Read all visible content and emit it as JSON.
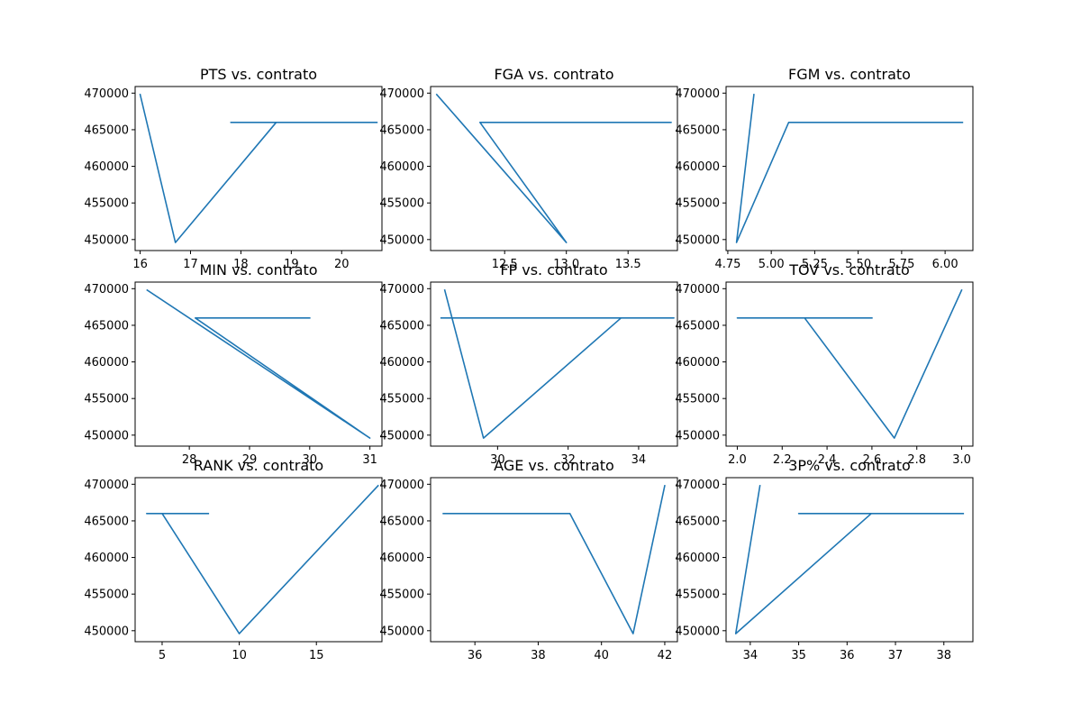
{
  "colors": {
    "series": "#1f77b4",
    "axis": "#000000",
    "background": "#ffffff"
  },
  "chart_data": [
    {
      "type": "line",
      "title": "PTS vs. contrato",
      "x": [
        16.0,
        16.7,
        18.7,
        20.7,
        17.8,
        20.7
      ],
      "y": [
        469800,
        449600,
        466000,
        466000,
        466000,
        466000
      ],
      "xlim": [
        15.9,
        20.8
      ],
      "ylim": [
        448500,
        470900
      ],
      "xticks": [
        16,
        17,
        18,
        19,
        20
      ],
      "xticklabels": [
        "16",
        "17",
        "18",
        "19",
        "20"
      ],
      "yticks": [
        450000,
        455000,
        460000,
        465000,
        470000
      ],
      "yticklabels": [
        "450000",
        "455000",
        "460000",
        "465000",
        "470000"
      ]
    },
    {
      "type": "line",
      "title": "FGA vs. contrato",
      "x": [
        11.95,
        13.0,
        12.3,
        13.85,
        13.5,
        13.7
      ],
      "y": [
        469800,
        449600,
        466000,
        466000,
        466000,
        466000
      ],
      "xlim": [
        11.9,
        13.9
      ],
      "ylim": [
        448500,
        470900
      ],
      "xticks": [
        12.5,
        13.0,
        13.5
      ],
      "xticklabels": [
        "12.5",
        "13.0",
        "13.5"
      ],
      "yticks": [
        450000,
        455000,
        460000,
        465000,
        470000
      ],
      "yticklabels": [
        "450000",
        "455000",
        "460000",
        "465000",
        "470000"
      ]
    },
    {
      "type": "line",
      "title": "FGM vs. contrato",
      "x": [
        4.9,
        4.8,
        5.1,
        6.1,
        5.4,
        6.1
      ],
      "y": [
        469800,
        449600,
        466000,
        466000,
        466000,
        466000
      ],
      "xlim": [
        4.74,
        6.16
      ],
      "ylim": [
        448500,
        470900
      ],
      "xticks": [
        4.75,
        5.0,
        5.25,
        5.5,
        5.75,
        6.0
      ],
      "xticklabels": [
        "4.75",
        "5.00",
        "5.25",
        "5.50",
        "5.75",
        "6.00"
      ],
      "yticks": [
        450000,
        455000,
        460000,
        465000,
        470000
      ],
      "yticklabels": [
        "450000",
        "455000",
        "460000",
        "465000",
        "470000"
      ]
    },
    {
      "type": "line",
      "title": "MIN vs. contrato",
      "x": [
        27.3,
        31.0,
        28.1,
        30.0
      ],
      "y": [
        469800,
        449600,
        466000,
        466000
      ],
      "xlim": [
        27.1,
        31.2
      ],
      "ylim": [
        448500,
        470900
      ],
      "xticks": [
        28,
        29,
        30,
        31
      ],
      "xticklabels": [
        "28",
        "29",
        "30",
        "31"
      ],
      "yticks": [
        450000,
        455000,
        460000,
        465000,
        470000
      ],
      "yticklabels": [
        "450000",
        "455000",
        "460000",
        "465000",
        "470000"
      ]
    },
    {
      "type": "line",
      "title": "FP vs. contrato",
      "x": [
        28.5,
        29.6,
        33.5,
        35.0,
        28.4
      ],
      "y": [
        469800,
        449600,
        466000,
        466000,
        466000
      ],
      "xlim": [
        28.1,
        35.1
      ],
      "ylim": [
        448500,
        470900
      ],
      "xticks": [
        30,
        32,
        34
      ],
      "xticklabels": [
        "30",
        "32",
        "34"
      ],
      "yticks": [
        450000,
        455000,
        460000,
        465000,
        470000
      ],
      "yticklabels": [
        "450000",
        "455000",
        "460000",
        "465000",
        "470000"
      ]
    },
    {
      "type": "line",
      "title": "TOV vs. contrato",
      "x": [
        3.0,
        2.7,
        2.3,
        2.0,
        2.6
      ],
      "y": [
        469800,
        449600,
        466000,
        466000,
        466000
      ],
      "xlim": [
        1.95,
        3.05
      ],
      "ylim": [
        448500,
        470900
      ],
      "xticks": [
        2.0,
        2.2,
        2.4,
        2.6,
        2.8,
        3.0
      ],
      "xticklabels": [
        "2.0",
        "2.2",
        "2.4",
        "2.6",
        "2.8",
        "3.0"
      ],
      "yticks": [
        450000,
        455000,
        460000,
        465000,
        470000
      ],
      "yticklabels": [
        "450000",
        "455000",
        "460000",
        "465000",
        "470000"
      ]
    },
    {
      "type": "line",
      "title": "RANK vs. contrato",
      "x": [
        19,
        10,
        5,
        4,
        8
      ],
      "y": [
        469800,
        449600,
        466000,
        466000,
        466000
      ],
      "xlim": [
        3.25,
        19.25
      ],
      "ylim": [
        448500,
        470900
      ],
      "xticks": [
        5,
        10,
        15
      ],
      "xticklabels": [
        "5",
        "10",
        "15"
      ],
      "yticks": [
        450000,
        455000,
        460000,
        465000,
        470000
      ],
      "yticklabels": [
        "450000",
        "455000",
        "460000",
        "465000",
        "470000"
      ]
    },
    {
      "type": "line",
      "title": "AGE vs. contrato",
      "x": [
        42,
        41,
        39,
        35
      ],
      "y": [
        469800,
        449600,
        466000,
        466000
      ],
      "xlim": [
        34.6,
        42.4
      ],
      "ylim": [
        448500,
        470900
      ],
      "xticks": [
        36,
        38,
        40,
        42
      ],
      "xticklabels": [
        "36",
        "38",
        "40",
        "42"
      ],
      "yticks": [
        450000,
        455000,
        460000,
        465000,
        470000
      ],
      "yticklabels": [
        "450000",
        "455000",
        "460000",
        "465000",
        "470000"
      ]
    },
    {
      "type": "line",
      "title": "3P% vs. contrato",
      "x": [
        34.2,
        33.7,
        36.5,
        38.4,
        35.0,
        38.4
      ],
      "y": [
        469800,
        449600,
        466000,
        466000,
        466000,
        466000
      ],
      "xlim": [
        33.5,
        38.6
      ],
      "ylim": [
        448500,
        470900
      ],
      "xticks": [
        34,
        35,
        36,
        37,
        38
      ],
      "xticklabels": [
        "34",
        "35",
        "36",
        "37",
        "38"
      ],
      "yticks": [
        450000,
        455000,
        460000,
        465000,
        470000
      ],
      "yticklabels": [
        "450000",
        "455000",
        "460000",
        "465000",
        "470000"
      ]
    }
  ]
}
